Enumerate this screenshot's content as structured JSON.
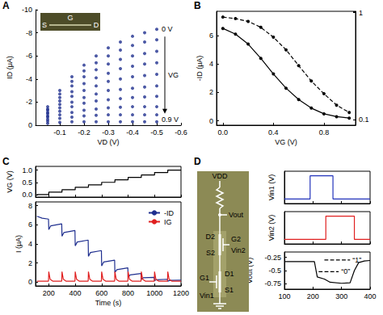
{
  "chart_data": [
    {
      "title": "A",
      "type": "scatter",
      "x_label": "VD (V)",
      "y_label": "ID (μA)",
      "xlim": [
        0,
        -0.6
      ],
      "xticks": [
        -0.1,
        -0.2,
        -0.3,
        -0.4,
        -0.5,
        -0.6
      ],
      "ylim": [
        0,
        -10
      ],
      "yticks": [
        0,
        -2,
        -4,
        -6,
        -8,
        -10
      ],
      "color": "#1f2f8f",
      "marker": "circle",
      "annotations": [
        "0 V",
        "0.9 V",
        "VG",
        "G",
        "S",
        "D"
      ],
      "x": [
        -0.05,
        -0.1,
        -0.15,
        -0.2,
        -0.25,
        -0.3,
        -0.35,
        -0.4,
        -0.45,
        -0.5
      ],
      "series": [
        {
          "values": [
            -1.6,
            -3.0,
            -4.2,
            -5.2,
            -6.0,
            -6.7,
            -7.2,
            -7.7,
            -8.0,
            -8.3
          ]
        },
        {
          "values": [
            -1.4,
            -2.7,
            -3.8,
            -4.7,
            -5.4,
            -6.0,
            -6.5,
            -6.9,
            -7.2,
            -7.4
          ]
        },
        {
          "values": [
            -1.3,
            -2.4,
            -3.4,
            -4.2,
            -4.8,
            -5.3,
            -5.7,
            -6.0,
            -6.2,
            -6.4
          ]
        },
        {
          "values": [
            -1.1,
            -2.1,
            -2.9,
            -3.6,
            -4.1,
            -4.5,
            -4.9,
            -5.1,
            -5.3,
            -5.4
          ]
        },
        {
          "values": [
            -1.0,
            -1.8,
            -2.5,
            -3.0,
            -3.4,
            -3.8,
            -4.0,
            -4.2,
            -4.3,
            -4.4
          ]
        },
        {
          "values": [
            -0.8,
            -1.5,
            -2.0,
            -2.4,
            -2.7,
            -3.0,
            -3.1,
            -3.2,
            -3.3,
            -3.4
          ]
        },
        {
          "values": [
            -0.7,
            -1.2,
            -1.6,
            -1.9,
            -2.1,
            -2.2,
            -2.3,
            -2.4,
            -2.45,
            -2.5
          ]
        },
        {
          "values": [
            -0.5,
            -0.9,
            -1.1,
            -1.3,
            -1.4,
            -1.5,
            -1.55,
            -1.6,
            -1.6,
            -1.6
          ]
        },
        {
          "values": [
            -0.35,
            -0.6,
            -0.7,
            -0.8,
            -0.85,
            -0.9,
            -0.9,
            -0.9,
            -0.9,
            -0.9
          ]
        },
        {
          "values": [
            -0.15,
            -0.25,
            -0.3,
            -0.3,
            -0.3,
            -0.3,
            -0.3,
            -0.3,
            -0.3,
            -0.3
          ]
        }
      ]
    },
    {
      "title": "B",
      "type": "line",
      "x_label": "VG (V)",
      "y_label": "-ID (μA)",
      "xlim": [
        -0.05,
        1.05
      ],
      "xticks": [
        {
          "value": 0,
          "label": "0.0"
        },
        0.4,
        0.8
      ],
      "ylim": [
        -0.3,
        7.7
      ],
      "yticks": [
        0,
        2,
        4,
        6
      ],
      "y2lim": [
        0.089,
        1.03
      ],
      "y2ticks": [
        0.1,
        1
      ],
      "log": "y2",
      "x": [
        0,
        0.1,
        0.2,
        0.3,
        0.4,
        0.5,
        0.6,
        0.7,
        0.8,
        0.9,
        1.0
      ],
      "series": [
        {
          "values": [
            6.5,
            6.1,
            5.4,
            4.4,
            3.3,
            2.3,
            1.5,
            0.9,
            0.5,
            0.3,
            0.2
          ],
          "color": "#000000",
          "marker": "circle",
          "line_style": "solid"
        },
        {
          "values": [
            0.91,
            0.88,
            0.83,
            0.73,
            0.59,
            0.45,
            0.32,
            0.23,
            0.175,
            0.137,
            0.117
          ],
          "color": "#000000",
          "marker": "circle",
          "line_style": "dashed",
          "axis": "y2"
        }
      ]
    },
    {
      "title": "C",
      "type": "line",
      "y_label": "VG (V)",
      "xlim": [
        100,
        1200
      ],
      "xticks": [
        200,
        400,
        600,
        800,
        1000,
        1200
      ],
      "ylim": [
        -0.1,
        1.15
      ],
      "yticks": [
        {
          "value": 0,
          "label": "0.0"
        },
        0.5,
        {
          "value": 1,
          "label": "1.0"
        }
      ],
      "tick_labels": "y",
      "series": [
        {
          "color": "#000000",
          "x": [
            110,
            200,
            200,
            300,
            300,
            400,
            400,
            500,
            500,
            600,
            600,
            700,
            700,
            800,
            800,
            900,
            900,
            1000,
            1000,
            1100,
            1100,
            1200
          ],
          "values": [
            0,
            0,
            0.1,
            0.1,
            0.2,
            0.2,
            0.3,
            0.3,
            0.4,
            0.4,
            0.5,
            0.5,
            0.6,
            0.6,
            0.7,
            0.7,
            0.8,
            0.8,
            0.9,
            0.9,
            1.0,
            1.0
          ]
        }
      ]
    },
    {
      "type": "line",
      "x_label": "Time (s)",
      "y_label": "I (μA)",
      "xlim": [
        100,
        1200
      ],
      "xticks": [
        200,
        400,
        600,
        800,
        1000,
        1200
      ],
      "ylim": [
        -0.4,
        8.4
      ],
      "yticks": [
        0,
        2,
        4,
        6,
        8
      ],
      "legend": "upper right",
      "series": [
        {
          "name": "-ID",
          "color": "#1f2f8f",
          "x": [
            110,
            150,
            198,
            200,
            215,
            298,
            300,
            315,
            398,
            400,
            415,
            498,
            500,
            515,
            598,
            600,
            615,
            698,
            700,
            715,
            798,
            800,
            815,
            898,
            900,
            915,
            998,
            1000,
            1015,
            1098,
            1100,
            1115,
            1200
          ],
          "values": [
            6.9,
            6.7,
            6.6,
            5.5,
            5.9,
            6.1,
            4.8,
            5.2,
            5.4,
            3.8,
            4.2,
            4.4,
            2.7,
            3.1,
            3.3,
            1.7,
            2.1,
            2.3,
            1.0,
            1.3,
            1.5,
            0.5,
            0.75,
            0.9,
            0.3,
            0.45,
            0.5,
            0.15,
            0.25,
            0.3,
            0.1,
            0.18,
            0.2
          ]
        },
        {
          "name": "IG",
          "color": "#e02020",
          "x": [
            110,
            198,
            200,
            210,
            230,
            298,
            300,
            310,
            330,
            398,
            400,
            410,
            430,
            498,
            500,
            510,
            530,
            598,
            600,
            610,
            630,
            698,
            700,
            710,
            730,
            798,
            800,
            810,
            830,
            898,
            900,
            910,
            930,
            998,
            1000,
            1010,
            1030,
            1098,
            1100,
            1110,
            1130,
            1200
          ],
          "values": [
            0.1,
            0.1,
            1.1,
            0.3,
            0.1,
            0.1,
            1.1,
            0.3,
            0.1,
            0.1,
            1.1,
            0.3,
            0.1,
            0.1,
            1.1,
            0.3,
            0.1,
            0.1,
            1.1,
            0.3,
            0.1,
            0.1,
            1.1,
            0.3,
            0.1,
            0.1,
            1.1,
            0.3,
            0.1,
            0.1,
            1.1,
            0.3,
            0.1,
            0.1,
            1.1,
            0.3,
            0.1,
            0.1,
            1.1,
            0.3,
            0.1,
            0.1
          ]
        }
      ]
    },
    {
      "type": "line",
      "y_label": "Vin1 (V)",
      "xlim": [
        100,
        400
      ],
      "xticks": [
        100,
        200,
        300,
        400
      ],
      "ylim": [
        -0.1,
        0.6
      ],
      "tick_labels": false,
      "series": [
        {
          "color": "#2233bb",
          "x": [
            100,
            190,
            190,
            270,
            270,
            400
          ],
          "values": [
            0,
            0,
            0.5,
            0.5,
            0,
            0
          ]
        }
      ]
    },
    {
      "type": "line",
      "y_label": "Vin2 (V)",
      "xlim": [
        100,
        400
      ],
      "xticks": [
        100,
        200,
        300,
        400
      ],
      "ylim": [
        -0.1,
        0.6
      ],
      "tick_labels": false,
      "series": [
        {
          "color": "#e02020",
          "x": [
            100,
            245,
            245,
            345,
            345,
            400
          ],
          "values": [
            0,
            0,
            0.5,
            0.5,
            0,
            0
          ]
        }
      ]
    },
    {
      "type": "line",
      "y_label": "Vout (V)",
      "xlim": [
        100,
        400
      ],
      "xticks": [
        100,
        200,
        300,
        400
      ],
      "ylim": [
        -0.85,
        -0.15
      ],
      "yticks": [
        -0.25,
        -0.5,
        -0.75
      ],
      "annotations": [
        "“1”",
        "“0”"
      ],
      "series": [
        {
          "color": "#000000",
          "x": [
            100,
            205,
            215,
            240,
            260,
            300,
            330,
            345,
            360,
            380,
            400
          ],
          "values": [
            -0.33,
            -0.33,
            -0.62,
            -0.66,
            -0.72,
            -0.74,
            -0.73,
            -0.5,
            -0.35,
            -0.32,
            -0.31
          ]
        },
        {
          "color": "#000000",
          "line_style": "dashed",
          "x": [
            240,
            330
          ],
          "values": [
            -0.3,
            -0.3
          ]
        },
        {
          "color": "#000000",
          "line_style": "dashed",
          "x": [
            220,
            290
          ],
          "values": [
            -0.52,
            -0.52
          ]
        }
      ]
    }
  ],
  "diagram": {
    "title": "D",
    "labels": [
      "VDD",
      "Vout",
      "D2",
      "G2",
      "Vin2",
      "S2",
      "D1",
      "Vin1",
      "G1",
      "S1"
    ]
  }
}
